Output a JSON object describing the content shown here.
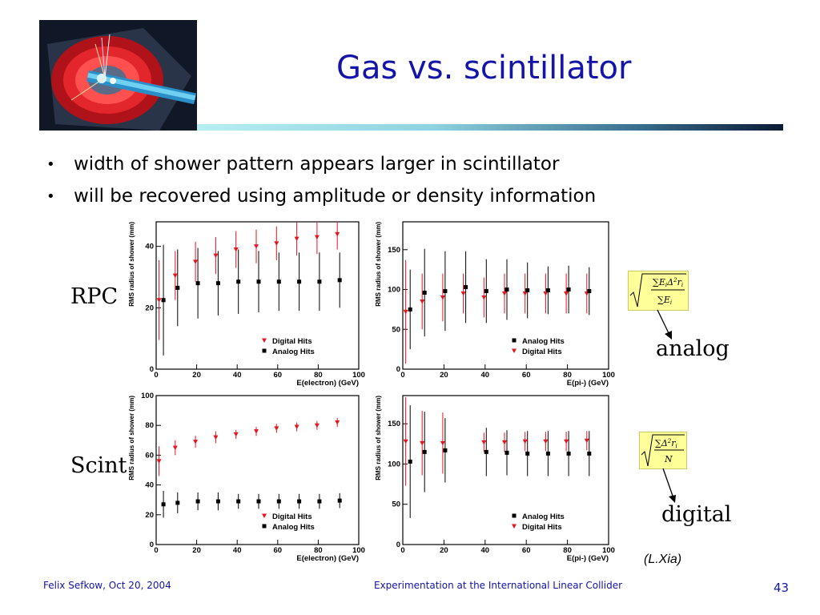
{
  "title": "Gas vs. scintillator",
  "bullets": [
    "width of shower pattern appears larger in scintillator",
    "will be recovered using amplitude or density information"
  ],
  "labels": {
    "rpc": "RPC",
    "scint": "Scint",
    "analog": "analog",
    "digital": "digital",
    "credit": "(L.Xia)"
  },
  "footer": {
    "left": "Felix Sefkow, Oct 20, 2004",
    "center": "Experimentation at the International Linear Collider",
    "page": "43"
  },
  "colors": {
    "title": "#1414a8",
    "digital_hits": "#e8141e",
    "analog_hits": "#000000",
    "formula_bg": "#ffff99"
  },
  "icons": [
    "detector-logo-image",
    "bullet-dot-icon",
    "arrow-icon"
  ],
  "chart_data": [
    {
      "type": "scatter",
      "xlabel": "E(electron) (GeV)",
      "ylabel": "RMS radius of shower (mm)",
      "xlim": [
        0,
        100
      ],
      "ylim": [
        0,
        48
      ],
      "xticks": [
        0,
        20,
        40,
        60,
        80,
        100
      ],
      "yticks": [
        0,
        20,
        40
      ],
      "legend": "bottom-right",
      "legend_order": [
        "Digital Hits",
        "Analog Hits"
      ],
      "series": [
        {
          "name": "Digital Hits",
          "marker": "triangle",
          "x": [
            2,
            10,
            20,
            30,
            40,
            50,
            60,
            70,
            80,
            90
          ],
          "y": [
            22.5,
            30.5,
            35,
            37,
            39,
            40,
            41,
            42.5,
            43,
            44
          ],
          "err": [
            13,
            8,
            6.5,
            6,
            6,
            5.5,
            5.5,
            5.5,
            5.5,
            5
          ]
        },
        {
          "name": "Analog Hits",
          "marker": "square",
          "x": [
            3,
            10,
            20,
            30,
            40,
            50,
            60,
            70,
            80,
            90
          ],
          "y": [
            22.5,
            26.5,
            28,
            28,
            28.5,
            28.5,
            28.5,
            28.5,
            28.5,
            29
          ],
          "err": [
            18,
            12.5,
            11.5,
            10.5,
            10.5,
            10,
            9.5,
            9.5,
            9.5,
            9
          ]
        }
      ]
    },
    {
      "type": "scatter",
      "xlabel": "E(pi-) (GeV)",
      "ylabel": "RMS radius of shower (mm)",
      "xlim": [
        0,
        100
      ],
      "ylim": [
        0,
        185
      ],
      "xticks": [
        0,
        20,
        40,
        60,
        80,
        100
      ],
      "yticks": [
        0,
        50,
        100,
        150
      ],
      "legend": "bottom-right",
      "legend_order": [
        "Analog Hits",
        "Digital Hits"
      ],
      "series": [
        {
          "name": "Digital Hits",
          "marker": "triangle",
          "x": [
            2,
            10,
            20,
            30,
            40,
            50,
            60,
            70,
            80,
            90
          ],
          "y": [
            72,
            85,
            90,
            95,
            90,
            95,
            95,
            95,
            95,
            95
          ],
          "err": [
            65,
            35,
            30,
            25,
            25,
            25,
            25,
            25,
            25,
            25
          ]
        },
        {
          "name": "Analog Hits",
          "marker": "square",
          "x": [
            3,
            10,
            20,
            30,
            40,
            50,
            60,
            70,
            80,
            90
          ],
          "y": [
            75,
            96,
            98,
            103,
            98,
            100,
            99,
            99,
            100,
            98
          ],
          "err": [
            50,
            55,
            50,
            45,
            40,
            38,
            35,
            30,
            30,
            30
          ]
        }
      ]
    },
    {
      "type": "scatter",
      "xlabel": "E(electron) (GeV)",
      "ylabel": "RMS radius of shower (mm)",
      "xlim": [
        0,
        100
      ],
      "ylim": [
        0,
        100
      ],
      "xticks": [
        0,
        20,
        40,
        60,
        80,
        100
      ],
      "yticks": [
        0,
        20,
        40,
        60,
        80,
        100
      ],
      "legend": "bottom-right",
      "legend_order": [
        "Digital Hits",
        "Analog Hits"
      ],
      "series": [
        {
          "name": "Digital Hits",
          "marker": "triangle",
          "x": [
            2,
            10,
            20,
            30,
            40,
            50,
            60,
            70,
            80,
            90
          ],
          "y": [
            56,
            65,
            69,
            72,
            74,
            76,
            78,
            79,
            80,
            82
          ],
          "err": [
            10,
            5,
            4,
            4,
            3,
            3,
            3,
            3,
            3,
            3
          ]
        },
        {
          "name": "Analog Hits",
          "marker": "square",
          "x": [
            3,
            10,
            20,
            30,
            40,
            50,
            60,
            70,
            80,
            90
          ],
          "y": [
            27,
            28,
            29,
            29,
            29,
            29,
            29,
            29,
            29,
            29.5
          ],
          "err": [
            9,
            7,
            6,
            6,
            5,
            5,
            5,
            5,
            5,
            5
          ]
        }
      ]
    },
    {
      "type": "scatter",
      "xlabel": "E(pi-) (GeV)",
      "ylabel": "RMS radius of shower (mm)",
      "xlim": [
        0,
        100
      ],
      "ylim": [
        0,
        185
      ],
      "xticks": [
        0,
        20,
        40,
        60,
        80,
        100
      ],
      "yticks": [
        0,
        50,
        100,
        150
      ],
      "legend": "bottom-right",
      "legend_order": [
        "Analog Hits",
        "Digital Hits"
      ],
      "series": [
        {
          "name": "Digital Hits",
          "marker": "triangle",
          "x": [
            2,
            10,
            20,
            40,
            50,
            60,
            70,
            80,
            90
          ],
          "y": [
            128,
            126,
            126,
            127,
            127,
            128,
            128,
            128,
            129
          ],
          "err": [
            55,
            40,
            38,
            12,
            12,
            12,
            12,
            12,
            12
          ]
        },
        {
          "name": "Analog Hits",
          "marker": "square",
          "x": [
            3,
            10,
            20,
            40,
            50,
            60,
            70,
            80,
            90
          ],
          "y": [
            103,
            115,
            117,
            115,
            114,
            113,
            113,
            113,
            113
          ],
          "err": [
            70,
            50,
            40,
            30,
            28,
            28,
            28,
            28,
            28
          ]
        }
      ]
    }
  ]
}
